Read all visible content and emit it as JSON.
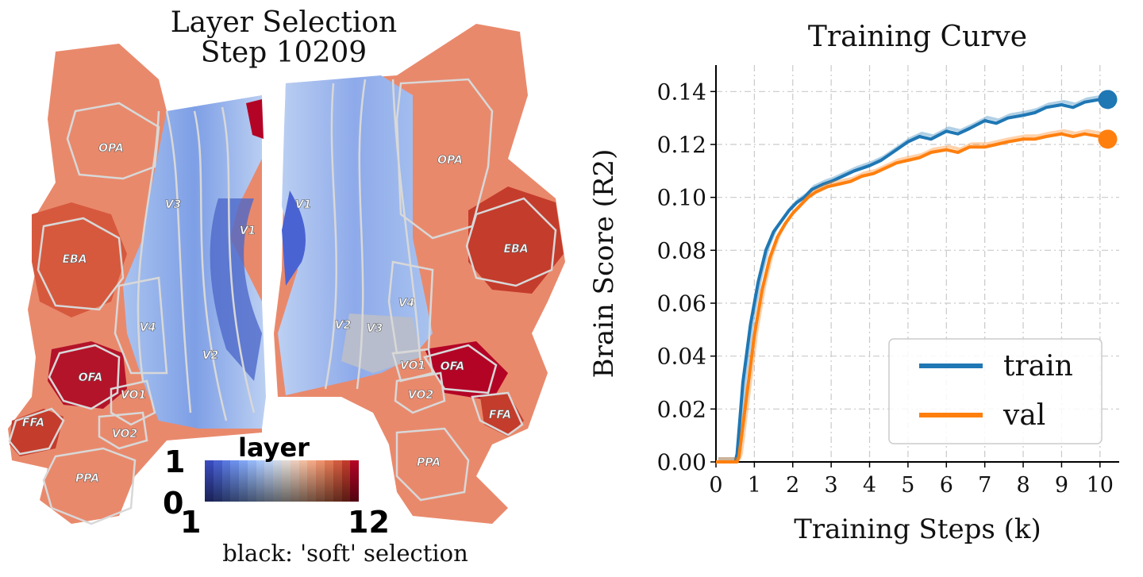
{
  "left_panel": {
    "title_line1": "Layer Selection",
    "title_line2": "Step 10209",
    "roi_labels": [
      "OPA",
      "V3",
      "V1",
      "EBA",
      "V4",
      "V2",
      "OFA",
      "VO1",
      "FFA",
      "VO2",
      "PPA"
    ],
    "colorbar": {
      "title": "layer",
      "alpha_max": "1",
      "alpha_min": "0",
      "layer_min": "1",
      "layer_max": "12",
      "note": "black: 'soft' selection",
      "colors": [
        "#3b4cc0",
        "#4a63d3",
        "#5b7be2",
        "#6e91ee",
        "#82a6f5",
        "#97b9fa",
        "#abc8fc",
        "#bfd3f6",
        "#d1dae9",
        "#e2dad5",
        "#eecebd",
        "#f4bfa2",
        "#f5ab88",
        "#ef946e",
        "#e47a55",
        "#d55d40",
        "#c43c2c",
        "#b40426"
      ]
    }
  },
  "chart_data": {
    "type": "line",
    "title": "Training Curve",
    "xlabel": "Training Steps (k)",
    "ylabel": "Brain Score (R2)",
    "xlim": [
      0,
      10.5
    ],
    "ylim": [
      0,
      0.15
    ],
    "xticks": [
      "0",
      "1",
      "2",
      "3",
      "4",
      "5",
      "6",
      "7",
      "8",
      "9",
      "10"
    ],
    "yticks": [
      "0.00",
      "0.02",
      "0.04",
      "0.06",
      "0.08",
      "0.10",
      "0.12",
      "0.14"
    ],
    "grid": true,
    "legend_position": "lower-right",
    "series": [
      {
        "name": "train",
        "color": "#1f77b4",
        "x": [
          0,
          0.5,
          0.55,
          0.7,
          0.9,
          1.1,
          1.3,
          1.5,
          1.7,
          1.9,
          2.1,
          2.3,
          2.5,
          2.8,
          3.0,
          3.3,
          3.6,
          4.0,
          4.3,
          4.6,
          5.0,
          5.3,
          5.6,
          6.0,
          6.3,
          6.6,
          7.0,
          7.3,
          7.6,
          8.0,
          8.3,
          8.6,
          9.0,
          9.3,
          9.6,
          10.0,
          10.2
        ],
        "values": [
          0,
          0,
          0.003,
          0.03,
          0.052,
          0.068,
          0.08,
          0.087,
          0.091,
          0.095,
          0.098,
          0.1,
          0.103,
          0.105,
          0.106,
          0.108,
          0.11,
          0.112,
          0.114,
          0.117,
          0.121,
          0.123,
          0.122,
          0.125,
          0.124,
          0.126,
          0.129,
          0.128,
          0.13,
          0.131,
          0.132,
          0.134,
          0.135,
          0.134,
          0.136,
          0.137,
          0.137
        ]
      },
      {
        "name": "val",
        "color": "#ff7f0e",
        "x": [
          0,
          0.55,
          0.6,
          0.8,
          1.0,
          1.2,
          1.4,
          1.6,
          1.8,
          2.0,
          2.2,
          2.4,
          2.6,
          2.9,
          3.2,
          3.5,
          3.8,
          4.1,
          4.4,
          4.7,
          5.0,
          5.3,
          5.6,
          6.0,
          6.3,
          6.6,
          7.0,
          7.3,
          7.6,
          8.0,
          8.3,
          8.6,
          9.0,
          9.3,
          9.6,
          10.0,
          10.2
        ],
        "values": [
          0,
          0,
          0.002,
          0.025,
          0.048,
          0.065,
          0.077,
          0.085,
          0.09,
          0.094,
          0.097,
          0.1,
          0.102,
          0.104,
          0.105,
          0.106,
          0.108,
          0.109,
          0.111,
          0.113,
          0.114,
          0.115,
          0.117,
          0.118,
          0.117,
          0.119,
          0.119,
          0.12,
          0.121,
          0.122,
          0.122,
          0.123,
          0.124,
          0.123,
          0.124,
          0.123,
          0.122
        ]
      }
    ],
    "final_markers": [
      {
        "series": "train",
        "x": 10.2,
        "y": 0.137
      },
      {
        "series": "val",
        "x": 10.2,
        "y": 0.122
      }
    ]
  }
}
